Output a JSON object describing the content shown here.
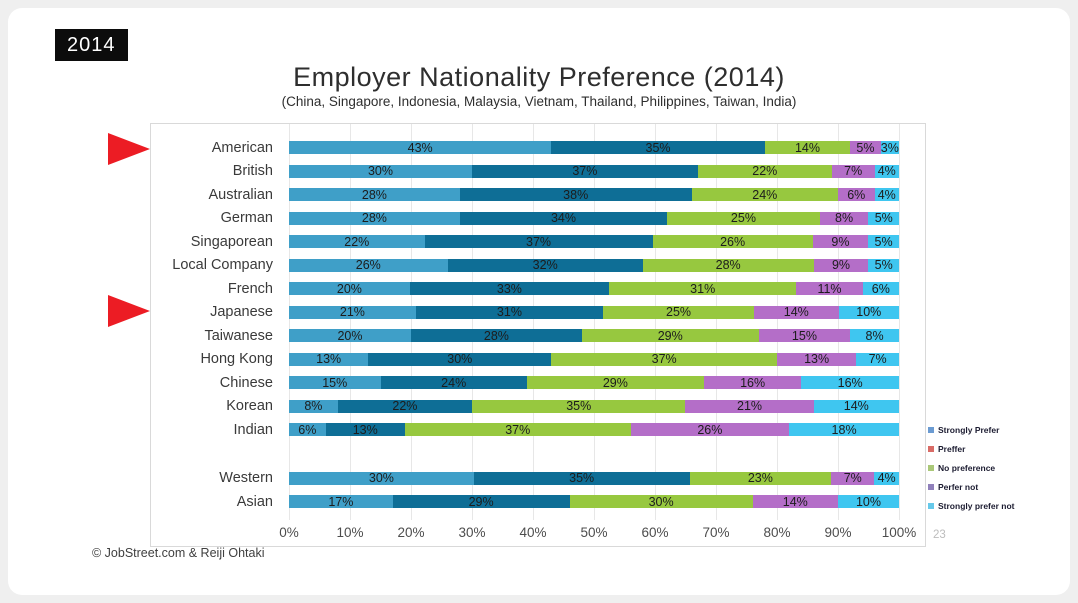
{
  "page": {
    "year_badge": "2014",
    "footer": "© JobStreet.com & Reiji Ohtaki",
    "page_number": "23"
  },
  "chart_data": {
    "type": "bar",
    "variant": "horizontal-stacked",
    "title": "Employer Nationality Preference (2014)",
    "subtitle": "(China, Singapore, Indonesia, Malaysia, Vietnam, Thailand, Philippines, Taiwan, India)",
    "xlim": [
      0,
      100
    ],
    "grid": true,
    "legend_position": "right",
    "series": [
      {
        "name": "Strongly Prefer",
        "bar_color": "#3f9fc8",
        "legend_color": "#6b9bd2"
      },
      {
        "name": "Preffer",
        "bar_color": "#0e6e96",
        "legend_color": "#d96b66"
      },
      {
        "name": "No preference",
        "bar_color": "#97c83f",
        "legend_color": "#aac878"
      },
      {
        "name": "Perfer not",
        "bar_color": "#b46ec8",
        "legend_color": "#9080bb"
      },
      {
        "name": "Strongly prefer not",
        "bar_color": "#3fc6f0",
        "legend_color": "#66c9ea"
      }
    ],
    "rows": [
      {
        "label": "American",
        "values": [
          "43%",
          "35%",
          "14%",
          "5%",
          "3%"
        ]
      },
      {
        "label": "British",
        "values": [
          "30%",
          "37%",
          "22%",
          "7%",
          "4%"
        ]
      },
      {
        "label": "Australian",
        "values": [
          "28%",
          "38%",
          "24%",
          "6%",
          "4%"
        ]
      },
      {
        "label": "German",
        "values": [
          "28%",
          "34%",
          "25%",
          "8%",
          "5%"
        ]
      },
      {
        "label": "Singaporean",
        "values": [
          "22%",
          "37%",
          "26%",
          "9%",
          "5%"
        ]
      },
      {
        "label": "Local Company",
        "values": [
          "26%",
          "32%",
          "28%",
          "9%",
          "5%"
        ]
      },
      {
        "label": "French",
        "values": [
          "20%",
          "33%",
          "31%",
          "11%",
          "6%"
        ]
      },
      {
        "label": "Japanese",
        "values": [
          "21%",
          "31%",
          "25%",
          "14%",
          "10%"
        ]
      },
      {
        "label": "Taiwanese",
        "values": [
          "20%",
          "28%",
          "29%",
          "15%",
          "8%"
        ]
      },
      {
        "label": "Hong Kong",
        "values": [
          "13%",
          "30%",
          "37%",
          "13%",
          "7%"
        ]
      },
      {
        "label": "Chinese",
        "values": [
          "15%",
          "24%",
          "29%",
          "16%",
          "16%"
        ]
      },
      {
        "label": "Korean",
        "values": [
          "8%",
          "22%",
          "35%",
          "21%",
          "14%"
        ]
      },
      {
        "label": "Indian",
        "values": [
          "6%",
          "13%",
          "37%",
          "26%",
          "18%"
        ]
      }
    ],
    "summary_rows": [
      {
        "label": "Western",
        "values": [
          "30%",
          "35%",
          "23%",
          "7%",
          "4%"
        ]
      },
      {
        "label": "Asian",
        "values": [
          "17%",
          "29%",
          "30%",
          "14%",
          "10%"
        ]
      }
    ],
    "xticks": [
      "0%",
      "10%",
      "20%",
      "30%",
      "40%",
      "50%",
      "60%",
      "70%",
      "80%",
      "90%",
      "100%"
    ],
    "annotations": {
      "arrow_color": "#ec1c24",
      "arrows": [
        {
          "points_to": "American"
        },
        {
          "points_to": "Japanese"
        }
      ]
    }
  }
}
